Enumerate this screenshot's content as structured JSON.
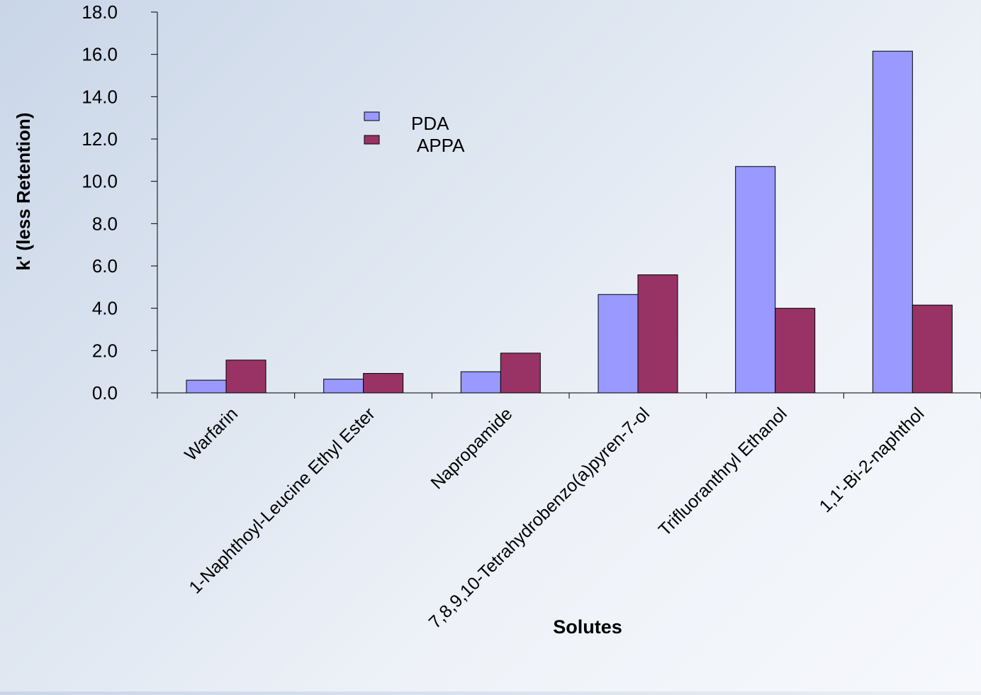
{
  "chart_data": {
    "type": "bar",
    "xlabel": "Solutes",
    "ylabel": "k' (less Retention)",
    "ylim": [
      0,
      18
    ],
    "ytick_step": 2,
    "ytick_labels": [
      "0.0",
      "2.0",
      "4.0",
      "6.0",
      "8.0",
      "10.0",
      "12.0",
      "14.0",
      "16.0",
      "18.0"
    ],
    "categories": [
      "Warfarin",
      "1-Naphthoyl-Leucine Ethyl Ester",
      "Napropamide",
      "7,8,9,10-Tetrahydrobenzo(a)pyren-7-ol",
      "Trifluoranthryl Ethanol",
      "1,1'-Bi-2-naphthol"
    ],
    "series": [
      {
        "name": "PDA",
        "color": "#9999ff",
        "values": [
          0.6,
          0.65,
          1.0,
          4.65,
          10.7,
          16.15
        ]
      },
      {
        "name": "APPA",
        "color": "#993366",
        "values": [
          1.55,
          0.92,
          1.88,
          5.58,
          4.0,
          4.15
        ]
      }
    ],
    "legend": {
      "position": "top-center",
      "labels": [
        "PDA",
        "APPA"
      ]
    },
    "grid": false
  }
}
